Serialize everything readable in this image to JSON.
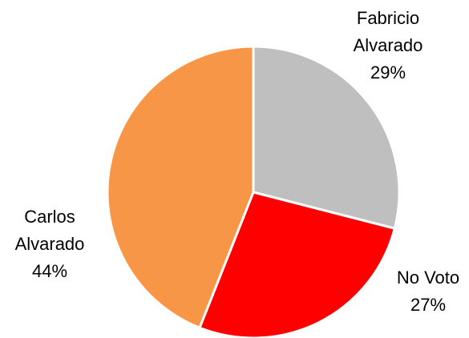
{
  "chart_data": {
    "type": "pie",
    "title": "",
    "slices": [
      {
        "name": "Fabricio Alvarado",
        "label_lines": [
          "Fabricio",
          "Alvarado"
        ],
        "percent_label": "29%",
        "value": 29,
        "color": "#bfbfbf"
      },
      {
        "name": "No Voto",
        "label_lines": [
          "No Voto"
        ],
        "percent_label": "27%",
        "value": 27,
        "color": "#ff0000"
      },
      {
        "name": "Carlos Alvarado",
        "label_lines": [
          "Carlos",
          "Alvarado"
        ],
        "percent_label": "44%",
        "value": 44,
        "color": "#f79646"
      }
    ],
    "start_angle_deg": 90,
    "direction": "clockwise",
    "border_color": "#ffffff"
  }
}
